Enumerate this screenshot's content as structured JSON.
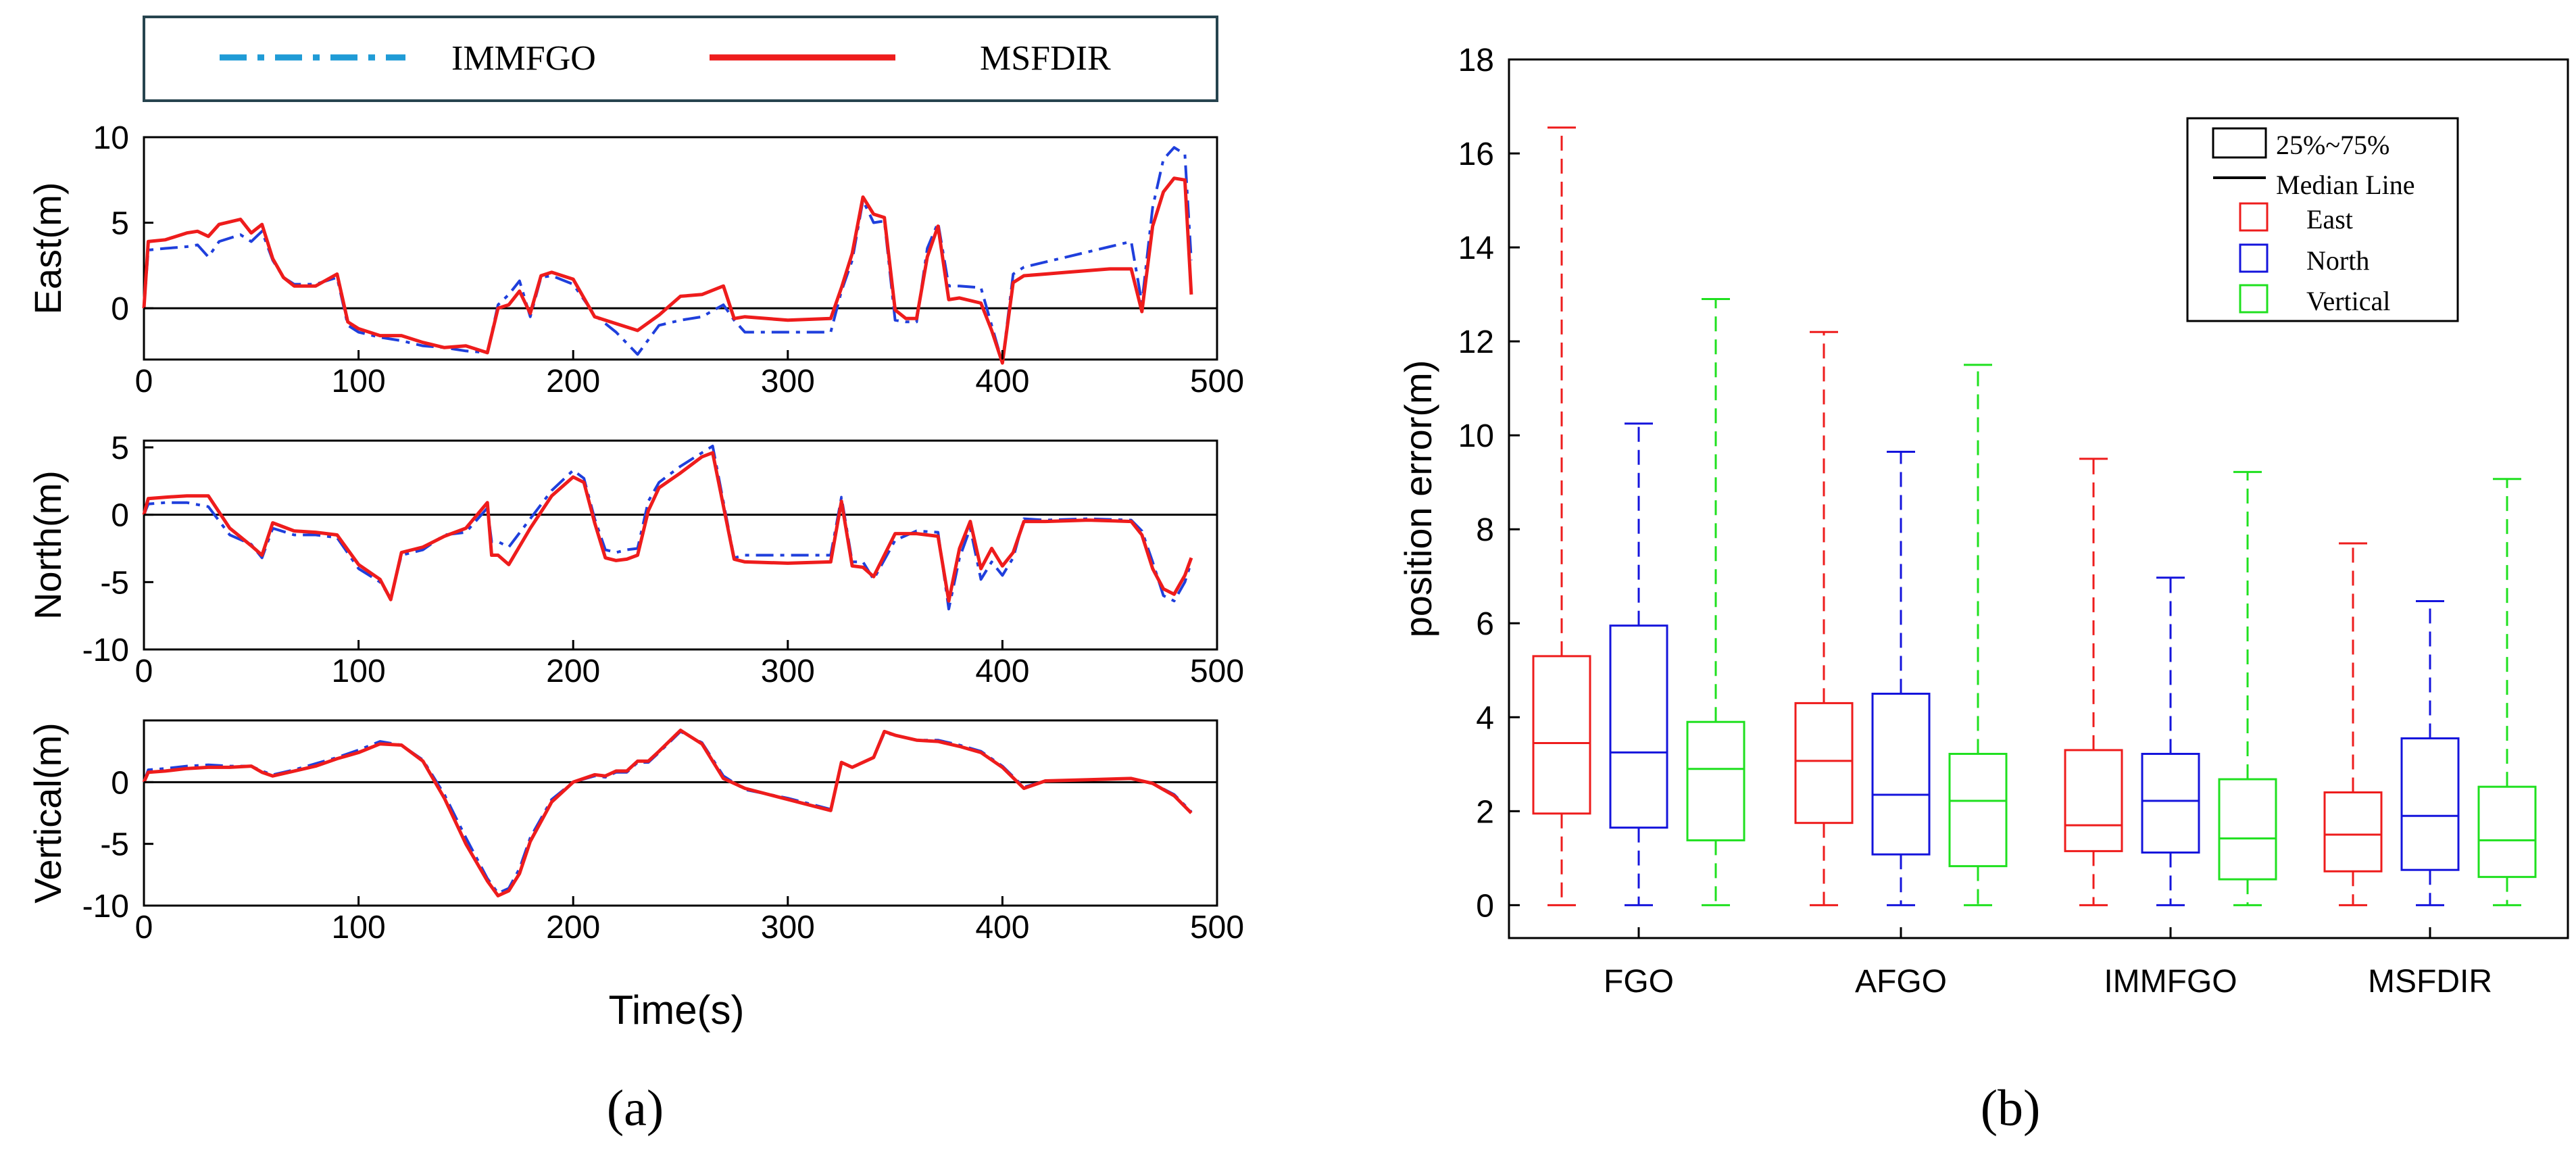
{
  "legend_a": {
    "items": [
      {
        "label": "IMMFGO",
        "color": "#1f9bd6",
        "style": "dash-dot"
      },
      {
        "label": "MSFDIR",
        "color": "#ee1c1c",
        "style": "solid"
      }
    ]
  },
  "panel_labels": {
    "a": "(a)",
    "b": "(b)"
  },
  "chart_data": [
    {
      "type": "line",
      "panel": "a-east",
      "title": "",
      "xlabel": "",
      "ylabel": "East(m)",
      "xlim": [
        0,
        500
      ],
      "ylim": [
        -3,
        10
      ],
      "xticks": [
        0,
        100,
        200,
        300,
        400,
        500
      ],
      "yticks": [
        0,
        5,
        10
      ],
      "series": [
        {
          "name": "IMMFGO",
          "color": "#1f3fdc",
          "x": [
            0,
            2,
            10,
            20,
            25,
            30,
            35,
            45,
            50,
            55,
            60,
            65,
            70,
            80,
            90,
            95,
            100,
            110,
            120,
            130,
            140,
            150,
            160,
            165,
            170,
            175,
            180,
            185,
            190,
            200,
            210,
            220,
            230,
            240,
            250,
            260,
            270,
            275,
            280,
            300,
            320,
            325,
            330,
            335,
            340,
            345,
            350,
            355,
            360,
            365,
            370,
            375,
            380,
            390,
            395,
            400,
            405,
            410,
            420,
            430,
            440,
            450,
            460,
            465,
            470,
            475,
            480,
            485,
            488
          ],
          "y": [
            0,
            3.4,
            3.5,
            3.6,
            3.7,
            3,
            3.9,
            4.3,
            3.9,
            4.5,
            2.8,
            1.8,
            1.4,
            1.4,
            1.8,
            -1,
            -1.4,
            -1.7,
            -1.9,
            -2.2,
            -2.3,
            -2.5,
            -2.6,
            0.2,
            0.8,
            1.6,
            -0.5,
            1.8,
            1.9,
            1.4,
            -0.4,
            -1.4,
            -2.7,
            -1,
            -0.7,
            -0.5,
            0.2,
            -0.7,
            -1.4,
            -1.4,
            -1.4,
            1,
            2.8,
            6.3,
            5,
            5.1,
            -0.7,
            -0.8,
            -0.8,
            3.5,
            5,
            1.3,
            1.3,
            1.2,
            -1,
            -3.2,
            2,
            2.4,
            2.7,
            3,
            3.3,
            3.6,
            3.9,
            0.3,
            5.9,
            8.7,
            9.4,
            9,
            2.8
          ]
        },
        {
          "name": "MSFDIR",
          "color": "#ee1c1c",
          "x": [
            0,
            2,
            10,
            20,
            25,
            30,
            35,
            45,
            50,
            55,
            60,
            65,
            70,
            80,
            90,
            95,
            100,
            110,
            120,
            130,
            140,
            150,
            160,
            165,
            170,
            175,
            180,
            185,
            190,
            200,
            210,
            220,
            230,
            240,
            250,
            260,
            270,
            275,
            280,
            300,
            320,
            325,
            330,
            335,
            340,
            345,
            350,
            355,
            360,
            365,
            370,
            375,
            380,
            390,
            395,
            400,
            405,
            410,
            420,
            430,
            440,
            450,
            460,
            465,
            470,
            475,
            480,
            485,
            488
          ],
          "y": [
            0,
            3.9,
            4,
            4.4,
            4.5,
            4.2,
            4.9,
            5.2,
            4.4,
            4.9,
            2.9,
            1.8,
            1.3,
            1.3,
            2,
            -0.8,
            -1.2,
            -1.6,
            -1.6,
            -2,
            -2.3,
            -2.2,
            -2.6,
            0,
            0.2,
            1,
            -0.3,
            1.9,
            2.1,
            1.7,
            -0.5,
            -0.9,
            -1.3,
            -0.4,
            0.7,
            0.8,
            1.3,
            -0.6,
            -0.5,
            -0.7,
            -0.6,
            1.2,
            3.2,
            6.5,
            5.5,
            5.3,
            -0.1,
            -0.6,
            -0.6,
            3,
            4.8,
            0.5,
            0.6,
            0.3,
            -1.3,
            -3.2,
            1.5,
            1.9,
            2,
            2.1,
            2.2,
            2.3,
            2.3,
            -0.2,
            4.8,
            6.8,
            7.6,
            7.5,
            0.8
          ]
        }
      ]
    },
    {
      "type": "line",
      "panel": "a-north",
      "title": "",
      "xlabel": "",
      "ylabel": "North(m)",
      "xlim": [
        0,
        500
      ],
      "ylim": [
        -10,
        5.5
      ],
      "xticks": [
        0,
        100,
        200,
        300,
        400,
        500
      ],
      "yticks": [
        -10,
        -5,
        0,
        5
      ],
      "series": [
        {
          "name": "IMMFGO",
          "color": "#1f3fdc",
          "x": [
            0,
            2,
            10,
            20,
            30,
            40,
            50,
            55,
            60,
            70,
            80,
            90,
            100,
            110,
            115,
            120,
            130,
            140,
            150,
            160,
            162,
            165,
            170,
            180,
            190,
            200,
            205,
            210,
            215,
            220,
            225,
            230,
            235,
            240,
            250,
            260,
            265,
            275,
            280,
            300,
            320,
            325,
            330,
            335,
            340,
            350,
            360,
            370,
            375,
            380,
            385,
            390,
            395,
            400,
            405,
            410,
            420,
            440,
            460,
            465,
            470,
            475,
            480,
            485,
            488
          ],
          "y": [
            0,
            0.8,
            0.9,
            0.9,
            0.6,
            -1.5,
            -2.2,
            -3.2,
            -1,
            -1.5,
            -1.5,
            -1.7,
            -4,
            -5,
            -6.2,
            -3,
            -2.6,
            -1.5,
            -1.3,
            0.5,
            -2,
            -2,
            -2.4,
            -0.3,
            1.8,
            3.3,
            2.7,
            -0.3,
            -2.6,
            -2.8,
            -2.6,
            -2.5,
            1,
            2.4,
            3.6,
            4.6,
            5.1,
            -3.2,
            -3,
            -3,
            -3,
            1.3,
            -3.5,
            -3.5,
            -4.8,
            -1.9,
            -1.2,
            -1.3,
            -7,
            -3.2,
            -1,
            -4.8,
            -3.5,
            -4.5,
            -3.2,
            -0.3,
            -0.4,
            -0.3,
            -0.4,
            -1.2,
            -3.5,
            -6,
            -6.4,
            -5,
            -3.5
          ]
        },
        {
          "name": "MSFDIR",
          "color": "#ee1c1c",
          "x": [
            0,
            2,
            10,
            20,
            30,
            40,
            50,
            55,
            60,
            70,
            80,
            90,
            100,
            110,
            115,
            120,
            130,
            140,
            150,
            160,
            162,
            165,
            170,
            180,
            190,
            200,
            205,
            210,
            215,
            220,
            225,
            230,
            235,
            240,
            250,
            260,
            265,
            275,
            280,
            300,
            320,
            325,
            330,
            335,
            340,
            350,
            360,
            370,
            375,
            380,
            385,
            390,
            395,
            400,
            405,
            410,
            420,
            440,
            460,
            465,
            470,
            475,
            480,
            485,
            488
          ],
          "y": [
            0,
            1.2,
            1.3,
            1.4,
            1.4,
            -1,
            -2.3,
            -3,
            -0.6,
            -1.2,
            -1.3,
            -1.5,
            -3.7,
            -4.8,
            -6.3,
            -2.8,
            -2.4,
            -1.6,
            -1,
            0.9,
            -3,
            -3,
            -3.7,
            -1,
            1.4,
            2.8,
            2.4,
            -0.6,
            -3.2,
            -3.4,
            -3.3,
            -3,
            0.3,
            2,
            3.1,
            4.3,
            4.6,
            -3.3,
            -3.5,
            -3.6,
            -3.5,
            1,
            -3.8,
            -3.9,
            -4.6,
            -1.4,
            -1.4,
            -1.6,
            -6.4,
            -2.5,
            -0.5,
            -4,
            -2.5,
            -3.8,
            -2.8,
            -0.5,
            -0.5,
            -0.4,
            -0.5,
            -1.5,
            -4,
            -5.5,
            -5.9,
            -4.5,
            -3.2
          ]
        }
      ]
    },
    {
      "type": "line",
      "panel": "a-vertical",
      "title": "",
      "xlabel": "Time(s)",
      "ylabel": "Vertical(m)",
      "xlim": [
        0,
        500
      ],
      "ylim": [
        -10,
        5
      ],
      "xticks": [
        0,
        100,
        200,
        300,
        400,
        500
      ],
      "yticks": [
        -10,
        -5,
        0
      ],
      "series": [
        {
          "name": "IMMFGO",
          "color": "#1f3fdc",
          "x": [
            0,
            2,
            10,
            20,
            30,
            40,
            50,
            55,
            60,
            70,
            80,
            90,
            100,
            110,
            120,
            130,
            140,
            150,
            160,
            165,
            170,
            175,
            180,
            190,
            200,
            210,
            215,
            220,
            225,
            230,
            235,
            240,
            250,
            260,
            270,
            280,
            300,
            320,
            325,
            330,
            340,
            345,
            350,
            360,
            370,
            380,
            390,
            400,
            410,
            420,
            440,
            460,
            470,
            480,
            488
          ],
          "y": [
            0,
            1,
            1.1,
            1.3,
            1.4,
            1.3,
            1.3,
            0.9,
            0.6,
            1,
            1.5,
            2,
            2.6,
            3.3,
            3,
            1.8,
            -1,
            -4.5,
            -7.8,
            -9,
            -8.6,
            -7,
            -4.5,
            -1.4,
            0,
            0.5,
            0.4,
            0.8,
            0.8,
            1.6,
            1.6,
            2.4,
            4.1,
            3.2,
            0.5,
            -0.6,
            -1.3,
            -2.2,
            1.5,
            1.2,
            2,
            4,
            3.8,
            3.4,
            3.4,
            3,
            2.5,
            1.3,
            -0.4,
            0.1,
            0.2,
            0.3,
            -0.1,
            -1,
            -2.4
          ]
        },
        {
          "name": "MSFDIR",
          "color": "#ee1c1c",
          "x": [
            0,
            2,
            10,
            20,
            30,
            40,
            50,
            55,
            60,
            70,
            80,
            90,
            100,
            110,
            120,
            130,
            140,
            150,
            160,
            165,
            170,
            175,
            180,
            190,
            200,
            210,
            215,
            220,
            225,
            230,
            235,
            240,
            250,
            260,
            270,
            280,
            300,
            320,
            325,
            330,
            340,
            345,
            350,
            360,
            370,
            380,
            390,
            400,
            410,
            420,
            440,
            460,
            470,
            480,
            488
          ],
          "y": [
            0,
            0.8,
            0.9,
            1.1,
            1.2,
            1.2,
            1.3,
            0.8,
            0.5,
            0.9,
            1.3,
            1.9,
            2.4,
            3.1,
            3,
            1.7,
            -1.3,
            -5,
            -8,
            -9.2,
            -8.8,
            -7.4,
            -4.8,
            -1.6,
            0,
            0.6,
            0.5,
            0.9,
            0.9,
            1.7,
            1.7,
            2.5,
            4.2,
            3.1,
            0.3,
            -0.5,
            -1.4,
            -2.3,
            1.6,
            1.2,
            2,
            4.1,
            3.8,
            3.4,
            3.3,
            2.9,
            2.4,
            1.2,
            -0.5,
            0.1,
            0.2,
            0.3,
            -0.1,
            -1.1,
            -2.5
          ]
        }
      ]
    },
    {
      "type": "box",
      "panel": "b",
      "title": "",
      "xlabel": "",
      "ylabel": "position error(m)",
      "ylim": [
        -0.7,
        18
      ],
      "yticks": [
        0,
        2,
        4,
        6,
        8,
        10,
        12,
        14,
        16,
        18
      ],
      "categories": [
        "FGO",
        "AFGO",
        "IMMFGO",
        "MSFDIR"
      ],
      "legend": {
        "placement": "top-right",
        "box_label": "25%~75%",
        "median_label": "Median Line",
        "series_labels": [
          "East",
          "North",
          "Vertical"
        ]
      },
      "series": [
        {
          "name": "East",
          "color": "#ee1c1c",
          "stats": [
            {
              "min": 0,
              "q1": 1.95,
              "median": 3.45,
              "q3": 5.3,
              "max": 16.55
            },
            {
              "min": 0,
              "q1": 1.75,
              "median": 3.07,
              "q3": 4.3,
              "max": 12.2
            },
            {
              "min": 0,
              "q1": 1.15,
              "median": 1.7,
              "q3": 3.3,
              "max": 9.5
            },
            {
              "min": 0,
              "q1": 0.72,
              "median": 1.5,
              "q3": 2.4,
              "max": 7.7
            }
          ]
        },
        {
          "name": "North",
          "color": "#1414dc",
          "stats": [
            {
              "min": 0,
              "q1": 1.65,
              "median": 3.25,
              "q3": 5.95,
              "max": 10.25
            },
            {
              "min": 0,
              "q1": 1.08,
              "median": 2.35,
              "q3": 4.5,
              "max": 9.65
            },
            {
              "min": 0,
              "q1": 1.12,
              "median": 2.22,
              "q3": 3.22,
              "max": 6.97
            },
            {
              "min": 0,
              "q1": 0.75,
              "median": 1.9,
              "q3": 3.55,
              "max": 6.47
            }
          ]
        },
        {
          "name": "Vertical",
          "color": "#1fe01f",
          "stats": [
            {
              "min": 0,
              "q1": 1.38,
              "median": 2.9,
              "q3": 3.9,
              "max": 12.9
            },
            {
              "min": 0,
              "q1": 0.83,
              "median": 2.22,
              "q3": 3.22,
              "max": 11.5
            },
            {
              "min": 0,
              "q1": 0.55,
              "median": 1.42,
              "q3": 2.68,
              "max": 9.22
            },
            {
              "min": 0,
              "q1": 0.6,
              "median": 1.38,
              "q3": 2.52,
              "max": 9.07
            }
          ]
        }
      ]
    }
  ]
}
